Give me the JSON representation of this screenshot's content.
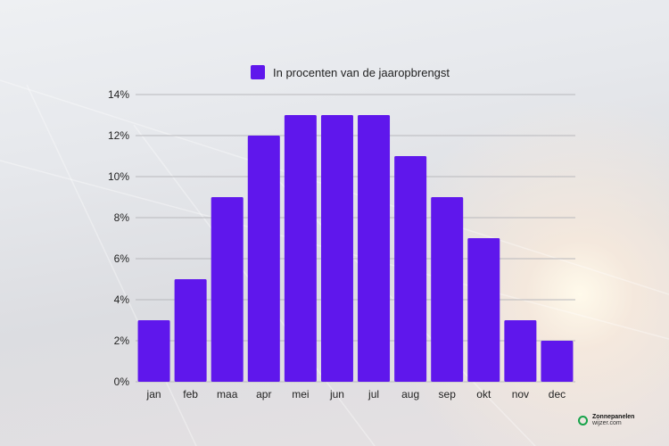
{
  "chart_data": {
    "type": "bar",
    "categories": [
      "jan",
      "feb",
      "maa",
      "apr",
      "mei",
      "jun",
      "jul",
      "aug",
      "sep",
      "okt",
      "nov",
      "dec"
    ],
    "series": [
      {
        "name": "In procenten van de jaaropbrengst",
        "values": [
          3,
          5,
          9,
          12,
          13,
          13,
          13,
          11,
          9,
          7,
          3,
          2
        ]
      }
    ],
    "ylim": [
      0,
      14
    ],
    "yticks": [
      "0%",
      "2%",
      "4%",
      "6%",
      "8%",
      "10%",
      "12%",
      "14%"
    ],
    "grid": true,
    "legend": "top",
    "color": "#5f17ec"
  },
  "logo": {
    "line1": "Zonnepanelen",
    "line2": "wijzer.com"
  }
}
